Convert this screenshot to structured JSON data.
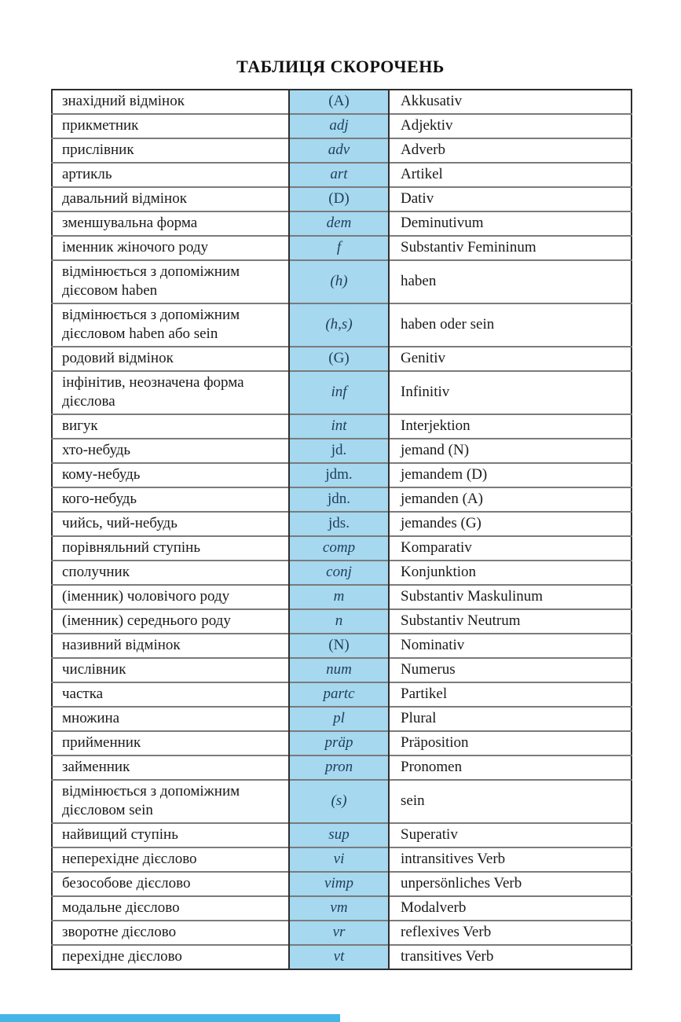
{
  "page_title": "ТАБЛИЦЯ СКОРОЧЕНЬ",
  "colors": {
    "highlight_cell": "#a6d8f0",
    "row_separator": "#7b7b7b",
    "table_border": "#2e2e2e",
    "abbr_text": "#1e3d5c",
    "body_text": "#1a1a1a",
    "bottom_strip": "#45b5e8"
  },
  "table": {
    "columns": [
      "ukrainian_term",
      "abbreviation",
      "german_term"
    ],
    "rows": [
      {
        "uk": "знахідний відмінок",
        "abbr": "(A)",
        "de": "Akkusativ",
        "italic": false
      },
      {
        "uk": "прикметник",
        "abbr": "adj",
        "de": "Adjektiv",
        "italic": true
      },
      {
        "uk": "прислівник",
        "abbr": "adv",
        "de": "Adverb",
        "italic": true
      },
      {
        "uk": "артикль",
        "abbr": "art",
        "de": "Artikel",
        "italic": true
      },
      {
        "uk": "давальний відмінок",
        "abbr": "(D)",
        "de": "Dativ",
        "italic": false
      },
      {
        "uk": "зменшувальна форма",
        "abbr": "dem",
        "de": "Deminutivum",
        "italic": true
      },
      {
        "uk": "іменник жіночого роду",
        "abbr": "f",
        "de": "Substantiv Femininum",
        "italic": true
      },
      {
        "uk": "відмінюється з допоміжним\nдієсовом  haben",
        "abbr": "(h)",
        "de": "haben",
        "italic": true
      },
      {
        "uk": "відмінюється з допоміжним\nдієсловом haben або sein",
        "abbr": "(h,s)",
        "de": "haben oder sein",
        "italic": true
      },
      {
        "uk": "родовий відмінок",
        "abbr": "(G)",
        "de": "Genitiv",
        "italic": false
      },
      {
        "uk": "інфінітив, неозначена форма\nдієслова",
        "abbr": "inf",
        "de": "Infinitiv",
        "italic": true
      },
      {
        "uk": "вигук",
        "abbr": "int",
        "de": "Interjektion",
        "italic": true
      },
      {
        "uk": "хто-небудь",
        "abbr": "jd.",
        "de": "jemand (N)",
        "italic": false
      },
      {
        "uk": "кому-небудь",
        "abbr": "jdm.",
        "de": "jemandem (D)",
        "italic": false
      },
      {
        "uk": "кого-небудь",
        "abbr": "jdn.",
        "de": "jemanden (A)",
        "italic": false
      },
      {
        "uk": "чийсь, чий-небудь",
        "abbr": "jds.",
        "de": "jemandes (G)",
        "italic": false
      },
      {
        "uk": "порівняльний ступінь",
        "abbr": "comp",
        "de": "Komparativ",
        "italic": true
      },
      {
        "uk": "сполучник",
        "abbr": "conj",
        "de": "Konjunktion",
        "italic": true
      },
      {
        "uk": "(іменник) чоловічого роду",
        "abbr": "m",
        "de": "Substantiv Maskulinum",
        "italic": true
      },
      {
        "uk": "(іменник) середнього роду",
        "abbr": "n",
        "de": "Substantiv Neutrum",
        "italic": true
      },
      {
        "uk": "називний відмінок",
        "abbr": "(N)",
        "de": "Nominativ",
        "italic": false
      },
      {
        "uk": "числівник",
        "abbr": "num",
        "de": "Numerus",
        "italic": true
      },
      {
        "uk": "частка",
        "abbr": "partc",
        "de": "Partikel",
        "italic": true
      },
      {
        "uk": "множина",
        "abbr": "pl",
        "de": "Plural",
        "italic": true
      },
      {
        "uk": "прийменник",
        "abbr": "präp",
        "de": "Präposition",
        "italic": true
      },
      {
        "uk": "займенник",
        "abbr": "pron",
        "de": "Pronomen",
        "italic": true
      },
      {
        "uk": "відмінюється з допоміжним\nдієсловом sein",
        "abbr": "(s)",
        "de": "sein",
        "italic": true
      },
      {
        "uk": "найвищий ступінь",
        "abbr": "sup",
        "de": "Superativ",
        "italic": true
      },
      {
        "uk": "неперехідне дієслово",
        "abbr": "vi",
        "de": "intransitives Verb",
        "italic": true
      },
      {
        "uk": "безособове дієслово",
        "abbr": "vimp",
        "de": "unpersönliches Verb",
        "italic": true
      },
      {
        "uk": "модальне дієслово",
        "abbr": "vm",
        "de": "Modalverb",
        "italic": true
      },
      {
        "uk": "зворотне дієслово",
        "abbr": "vr",
        "de": "reflexives Verb",
        "italic": true
      },
      {
        "uk": "перехідне дієслово",
        "abbr": "vt",
        "de": "transitives Verb",
        "italic": true
      }
    ]
  }
}
